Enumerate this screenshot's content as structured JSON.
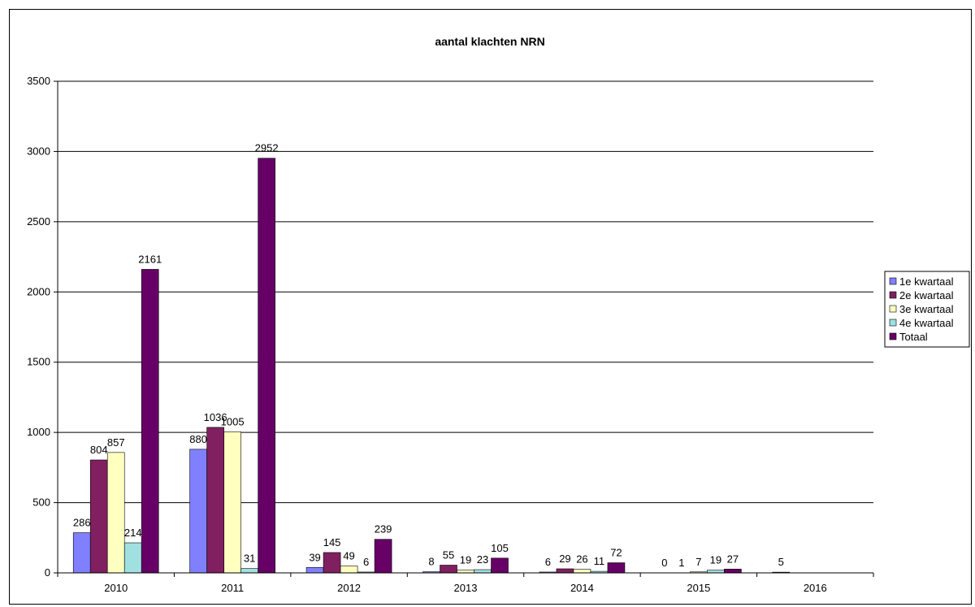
{
  "chart_data": {
    "type": "bar",
    "title": "aantal klachten NRN",
    "xlabel": "",
    "ylabel": "",
    "categories": [
      "2010",
      "2011",
      "2012",
      "2013",
      "2014",
      "2015",
      "2016"
    ],
    "ylim": [
      0,
      3500
    ],
    "yticks": [
      0,
      500,
      1000,
      1500,
      2000,
      2500,
      3000,
      3500
    ],
    "grid": true,
    "legend_position": "right",
    "series": [
      {
        "name": "1e kwartaal",
        "color": "#8080ff",
        "values": [
          286,
          880,
          39,
          8,
          6,
          0,
          5
        ],
        "labels": [
          "286",
          "880",
          "39",
          "8",
          "6",
          "0",
          "5"
        ]
      },
      {
        "name": "2e kwartaal",
        "color": "#802060",
        "values": [
          804,
          1036,
          145,
          55,
          29,
          1,
          null
        ],
        "labels": [
          "804",
          "1036",
          "145",
          "55",
          "29",
          "1",
          ""
        ]
      },
      {
        "name": "3e kwartaal",
        "color": "#ffffc0",
        "values": [
          857,
          1005,
          49,
          19,
          26,
          7,
          null
        ],
        "labels": [
          "857",
          "1005",
          "49",
          "19",
          "26",
          "7",
          ""
        ]
      },
      {
        "name": "4e kwartaal",
        "color": "#a0e0e0",
        "values": [
          214,
          31,
          6,
          23,
          11,
          19,
          null
        ],
        "labels": [
          "214",
          "31",
          "6",
          "23",
          "11",
          "19",
          ""
        ]
      },
      {
        "name": "Totaal",
        "color": "#660066",
        "values": [
          2161,
          2952,
          239,
          105,
          72,
          27,
          null
        ],
        "labels": [
          "2161",
          "2952",
          "239",
          "105",
          "72",
          "27",
          ""
        ]
      }
    ]
  }
}
